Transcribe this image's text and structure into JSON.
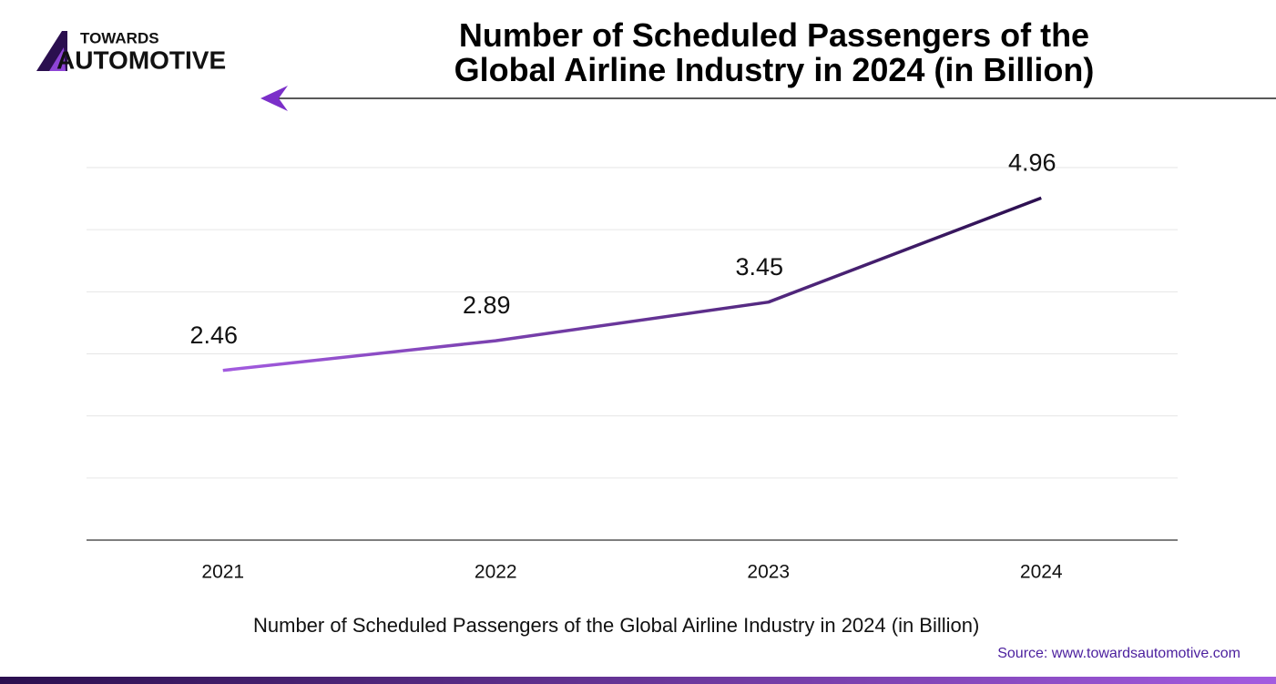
{
  "logo": {
    "line1": "TOWARDS",
    "line2": "AUTOMOTIVE"
  },
  "source": "Source: www.towardsautomotive.com",
  "chart_data": {
    "type": "line",
    "title": "Number of Scheduled Passengers of the Global Airline Industry in 2024 (in Billion)",
    "categories": [
      "2021",
      "2022",
      "2023",
      "2024"
    ],
    "series": [
      {
        "name": "Number of Scheduled Passengers of the Global Airline Industry in 2024 (in Billion)",
        "color": [
          "#a35be0",
          "#2b0f4f"
        ],
        "values": [
          2.46,
          2.89,
          3.45,
          4.96
        ]
      }
    ],
    "ylim": [
      0,
      5.4
    ],
    "yticks": [
      0,
      0.9,
      1.8,
      2.7,
      3.6,
      4.5,
      5.4
    ],
    "show_ytick_labels": false,
    "grid": true,
    "legend": "bottom"
  }
}
